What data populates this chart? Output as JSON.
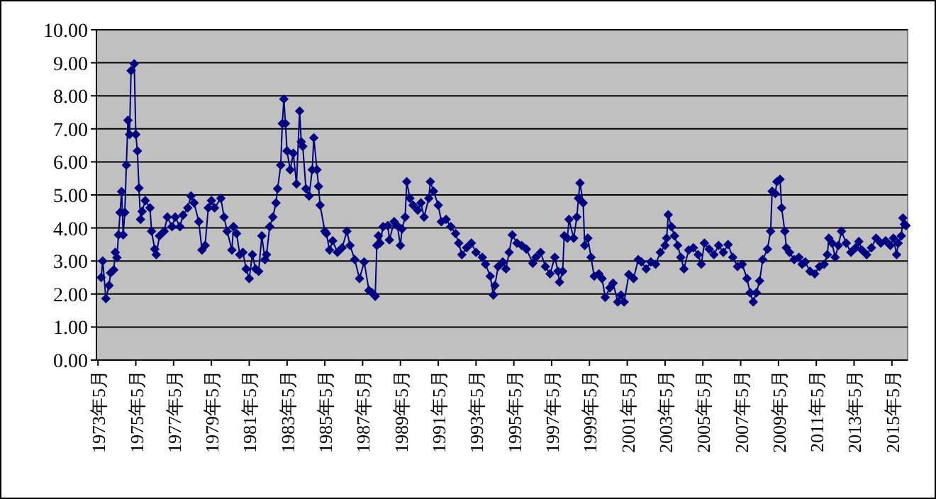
{
  "chart_data": {
    "type": "line",
    "grid": "y",
    "marker": "diamond",
    "line_style": "solid",
    "xlim": [
      "1973-04",
      "2016-03"
    ],
    "ylim": [
      0,
      10
    ],
    "xticks": [
      {
        "value": "1973-05",
        "label": "1973年5月"
      },
      {
        "value": "1975-05",
        "label": "1975年5月"
      },
      {
        "value": "1977-05",
        "label": "1977年5月"
      },
      {
        "value": "1979-05",
        "label": "1979年5月"
      },
      {
        "value": "1981-05",
        "label": "1981年5月"
      },
      {
        "value": "1983-05",
        "label": "1983年5月"
      },
      {
        "value": "1985-05",
        "label": "1985年5月"
      },
      {
        "value": "1987-05",
        "label": "1987年5月"
      },
      {
        "value": "1989-05",
        "label": "1989年5月"
      },
      {
        "value": "1991-05",
        "label": "1991年5月"
      },
      {
        "value": "1993-05",
        "label": "1993年5月"
      },
      {
        "value": "1995-05",
        "label": "1995年5月"
      },
      {
        "value": "1997-05",
        "label": "1997年5月"
      },
      {
        "value": "1999-05",
        "label": "1999年5月"
      },
      {
        "value": "2001-05",
        "label": "2001年5月"
      },
      {
        "value": "2003-05",
        "label": "2003年5月"
      },
      {
        "value": "2005-05",
        "label": "2005年5月"
      },
      {
        "value": "2007-05",
        "label": "2007年5月"
      },
      {
        "value": "2009-05",
        "label": "2009年5月"
      },
      {
        "value": "2011-05",
        "label": "2011年5月"
      },
      {
        "value": "2013-05",
        "label": "2013年5月"
      },
      {
        "value": "2015-05",
        "label": "2015年5月"
      }
    ],
    "yticks": [
      {
        "value": 0,
        "label": "0.00"
      },
      {
        "value": 1,
        "label": "1.00"
      },
      {
        "value": 2,
        "label": "2.00"
      },
      {
        "value": 3,
        "label": "3.00"
      },
      {
        "value": 4,
        "label": "4.00"
      },
      {
        "value": 5,
        "label": "5.00"
      },
      {
        "value": 6,
        "label": "6.00"
      },
      {
        "value": 7,
        "label": "7.00"
      },
      {
        "value": 8,
        "label": "8.00"
      },
      {
        "value": 9,
        "label": "9.00"
      },
      {
        "value": 10,
        "label": "10.00"
      }
    ],
    "x": [
      "1973-07",
      "1973-08",
      "1973-10",
      "1973-12",
      "1974-01",
      "1974-03",
      "1974-04",
      "1974-05",
      "1974-06",
      "1974-07",
      "1974-08",
      "1974-09",
      "1974-10",
      "1974-11",
      "1974-12",
      "1975-01",
      "1975-02",
      "1975-04",
      "1975-05",
      "1975-06",
      "1975-07",
      "1975-08",
      "1975-09",
      "1975-11",
      "1976-02",
      "1976-03",
      "1976-05",
      "1976-06",
      "1976-08",
      "1976-11",
      "1977-01",
      "1977-04",
      "1977-06",
      "1977-09",
      "1977-11",
      "1978-02",
      "1978-04",
      "1978-06",
      "1978-09",
      "1978-11",
      "1979-01",
      "1979-03",
      "1979-05",
      "1979-07",
      "1979-11",
      "1980-01",
      "1980-03",
      "1980-06",
      "1980-07",
      "1980-09",
      "1980-11",
      "1981-01",
      "1981-03",
      "1981-05",
      "1981-07",
      "1981-09",
      "1981-11",
      "1982-01",
      "1982-03",
      "1982-04",
      "1982-06",
      "1982-08",
      "1982-10",
      "1982-11",
      "1983-01",
      "1983-02",
      "1983-03",
      "1983-04",
      "1983-05",
      "1983-07",
      "1983-09",
      "1983-11",
      "1984-01",
      "1984-02",
      "1984-03",
      "1984-05",
      "1984-07",
      "1984-09",
      "1984-10",
      "1984-12",
      "1985-01",
      "1985-02",
      "1985-05",
      "1985-06",
      "1985-08",
      "1985-10",
      "1986-01",
      "1986-04",
      "1986-07",
      "1986-09",
      "1986-12",
      "1987-03",
      "1987-06",
      "1987-09",
      "1987-11",
      "1988-01",
      "1988-02",
      "1988-03",
      "1988-04",
      "1988-06",
      "1988-09",
      "1988-10",
      "1989-01",
      "1989-03",
      "1989-05",
      "1989-06",
      "1989-08",
      "1989-09",
      "1989-11",
      "1990-01",
      "1990-04",
      "1990-06",
      "1990-08",
      "1990-11",
      "1990-12",
      "1991-02",
      "1991-05",
      "1991-07",
      "1991-10",
      "1992-01",
      "1992-04",
      "1992-06",
      "1992-08",
      "1992-11",
      "1993-02",
      "1993-05",
      "1993-09",
      "1993-11",
      "1994-02",
      "1994-04",
      "1994-05",
      "1994-07",
      "1994-10",
      "1994-12",
      "1995-02",
      "1995-04",
      "1995-07",
      "1995-10",
      "1996-01",
      "1996-05",
      "1996-07",
      "1996-10",
      "1997-01",
      "1997-04",
      "1997-07",
      "1997-09",
      "1997-10",
      "1997-12",
      "1998-01",
      "1998-03",
      "1998-04",
      "1998-07",
      "1998-09",
      "1998-10",
      "1998-11",
      "1999-01",
      "1999-02",
      "1999-04",
      "1999-06",
      "1999-08",
      "1999-11",
      "2000-01",
      "2000-03",
      "2000-06",
      "2000-08",
      "2000-11",
      "2001-01",
      "2001-03",
      "2001-06",
      "2001-09",
      "2001-12",
      "2002-02",
      "2002-05",
      "2002-08",
      "2002-11",
      "2003-02",
      "2003-05",
      "2003-06",
      "2003-07",
      "2003-09",
      "2003-11",
      "2004-01",
      "2004-03",
      "2004-05",
      "2004-08",
      "2004-11",
      "2005-02",
      "2005-04",
      "2005-06",
      "2005-09",
      "2005-12",
      "2006-03",
      "2006-06",
      "2006-09",
      "2006-12",
      "2007-03",
      "2007-06",
      "2007-09",
      "2007-11",
      "2008-01",
      "2008-03",
      "2008-05",
      "2008-07",
      "2008-10",
      "2008-12",
      "2009-01",
      "2009-03",
      "2009-04",
      "2009-06",
      "2009-07",
      "2009-09",
      "2009-10",
      "2009-12",
      "2010-03",
      "2010-06",
      "2010-08",
      "2010-10",
      "2011-01",
      "2011-04",
      "2011-07",
      "2011-10",
      "2011-12",
      "2012-01",
      "2012-03",
      "2012-05",
      "2012-07",
      "2012-09",
      "2012-12",
      "2013-03",
      "2013-06",
      "2013-08",
      "2013-10",
      "2014-01",
      "2014-04",
      "2014-07",
      "2014-10",
      "2015-01",
      "2015-04",
      "2015-06",
      "2015-08",
      "2015-09",
      "2015-11",
      "2015-12",
      "2016-01",
      "2016-02"
    ],
    "series": [
      {
        "color": "#000080",
        "values": [
          2.5,
          3.0,
          1.86,
          2.26,
          2.64,
          2.73,
          3.26,
          3.1,
          3.79,
          4.47,
          5.1,
          3.79,
          4.47,
          5.9,
          7.26,
          6.83,
          8.76,
          8.97,
          6.83,
          6.33,
          5.21,
          4.26,
          4.5,
          4.83,
          4.61,
          3.9,
          3.36,
          3.19,
          3.76,
          3.9,
          4.33,
          4.04,
          4.33,
          4.04,
          4.39,
          4.61,
          4.97,
          4.76,
          4.19,
          3.33,
          3.47,
          4.61,
          4.83,
          4.61,
          4.9,
          4.33,
          3.9,
          3.33,
          4.04,
          3.83,
          3.19,
          3.26,
          2.76,
          2.47,
          3.19,
          2.76,
          2.69,
          3.76,
          3.04,
          3.19,
          4.04,
          4.33,
          4.76,
          5.19,
          5.9,
          7.16,
          7.9,
          7.16,
          6.33,
          5.76,
          6.26,
          5.33,
          7.54,
          6.61,
          6.47,
          5.19,
          4.97,
          5.76,
          6.73,
          5.76,
          5.26,
          4.69,
          3.9,
          3.83,
          3.33,
          3.61,
          3.26,
          3.4,
          3.9,
          3.47,
          3.04,
          2.47,
          2.97,
          2.11,
          2.04,
          1.93,
          3.47,
          3.76,
          3.54,
          4.04,
          4.07,
          3.64,
          4.19,
          4.07,
          3.47,
          3.97,
          4.33,
          5.4,
          4.9,
          4.69,
          4.54,
          4.76,
          4.33,
          4.9,
          5.4,
          5.11,
          4.69,
          4.19,
          4.26,
          4.04,
          3.83,
          3.54,
          3.19,
          3.4,
          3.54,
          3.26,
          3.11,
          2.9,
          2.54,
          1.97,
          2.26,
          2.83,
          2.97,
          2.76,
          3.26,
          3.79,
          3.54,
          3.47,
          3.36,
          2.93,
          3.11,
          3.26,
          2.83,
          2.61,
          3.11,
          2.69,
          2.36,
          2.69,
          3.76,
          3.69,
          4.26,
          3.69,
          4.33,
          4.9,
          5.36,
          4.76,
          3.47,
          3.69,
          3.11,
          2.54,
          2.61,
          2.47,
          1.9,
          2.19,
          2.33,
          1.76,
          1.97,
          1.76,
          2.59,
          2.47,
          3.04,
          2.97,
          2.76,
          2.97,
          2.9,
          3.26,
          3.47,
          3.69,
          4.4,
          4.04,
          3.76,
          3.47,
          3.11,
          2.76,
          3.33,
          3.4,
          3.19,
          2.9,
          3.54,
          3.36,
          3.19,
          3.47,
          3.26,
          3.5,
          3.11,
          2.83,
          2.9,
          2.47,
          2.04,
          1.76,
          2.04,
          2.4,
          3.04,
          3.36,
          3.9,
          5.11,
          5.04,
          5.4,
          5.47,
          4.61,
          3.9,
          3.4,
          3.26,
          3.04,
          3.11,
          2.9,
          2.97,
          2.69,
          2.61,
          2.83,
          2.9,
          3.19,
          3.69,
          3.54,
          3.11,
          3.47,
          3.9,
          3.54,
          3.26,
          3.4,
          3.59,
          3.33,
          3.19,
          3.4,
          3.69,
          3.54,
          3.61,
          3.47,
          3.69,
          3.19,
          3.54,
          3.76,
          4.3,
          4.11,
          4.07
        ]
      }
    ]
  }
}
